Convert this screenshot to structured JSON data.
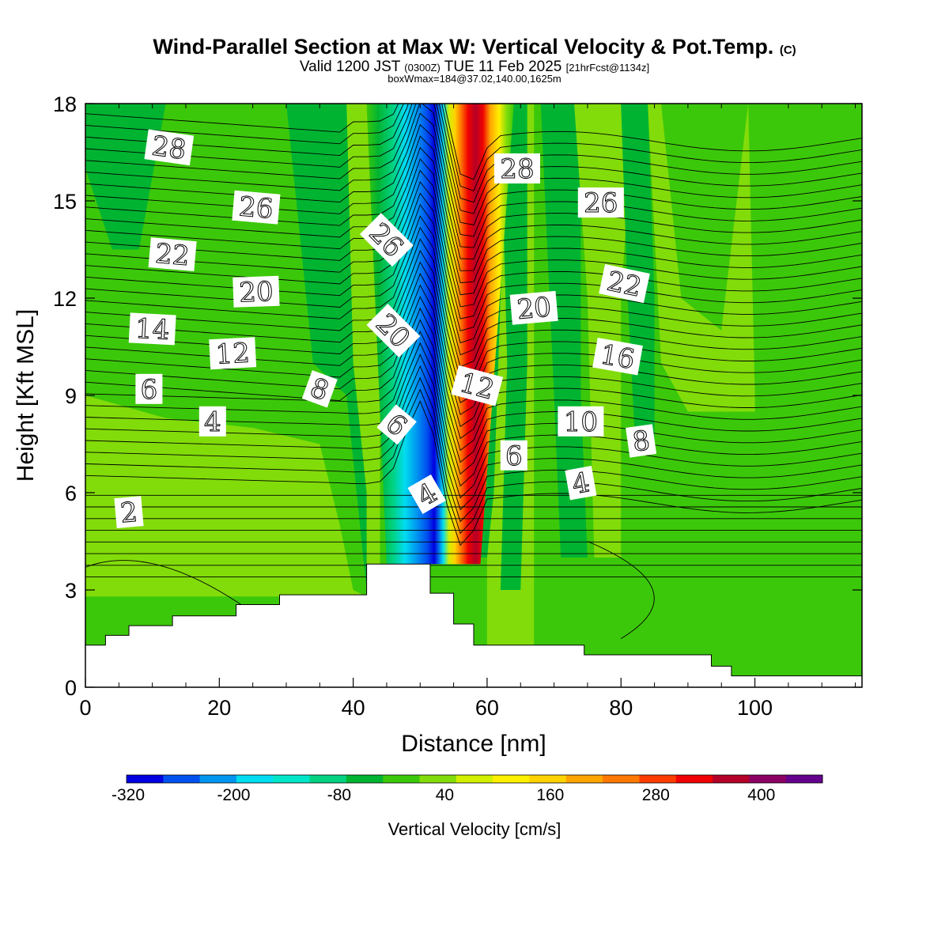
{
  "header": {
    "title_main": "Wind-Parallel Section at Max W: Vertical Velocity & Pot.Temp.",
    "title_mark": "(C)",
    "valid_a": "Valid 1200 JST",
    "valid_b": "(0300Z)",
    "valid_c": "TUE 11 Feb 2025",
    "valid_d": "[21hrFcst@1134z]",
    "box_info": "boxWmax=184@37.02,140.00,1625m"
  },
  "chart_data": {
    "type": "heatmap",
    "xlabel": "Distance [nm]",
    "ylabel": "Height [Kft MSL]",
    "xlim": [
      0,
      116
    ],
    "ylim": [
      0,
      18
    ],
    "xticks": [
      0,
      20,
      40,
      60,
      80,
      100
    ],
    "yticks": [
      0,
      3,
      6,
      9,
      12,
      15,
      18
    ],
    "colorbar": {
      "label": "Vertical Velocity [cm/s]",
      "tick_values": [
        -320,
        -200,
        -80,
        40,
        160,
        280,
        400
      ],
      "tick_labels": [
        "-320",
        "-200",
        "-80",
        "40",
        "160",
        "280",
        "400"
      ],
      "colors": [
        "#0000e0",
        "#0050f0",
        "#0096f0",
        "#00dcf0",
        "#00e6c8",
        "#00d282",
        "#00b432",
        "#3cc80a",
        "#82dc0a",
        "#d2f000",
        "#fff000",
        "#ffd200",
        "#ffa500",
        "#ff7800",
        "#ff3c00",
        "#f00000",
        "#b40028",
        "#8c0064",
        "#64008c"
      ]
    },
    "terrain": [
      [
        0,
        1.3
      ],
      [
        3,
        1.3
      ],
      [
        3,
        1.6
      ],
      [
        6.5,
        1.6
      ],
      [
        6.5,
        1.9
      ],
      [
        13,
        1.9
      ],
      [
        13,
        2.2
      ],
      [
        22.5,
        2.2
      ],
      [
        22.5,
        2.55
      ],
      [
        29,
        2.55
      ],
      [
        29,
        2.85
      ],
      [
        42,
        2.85
      ],
      [
        42,
        3.8
      ],
      [
        51.5,
        3.8
      ],
      [
        51.5,
        2.9
      ],
      [
        55,
        2.9
      ],
      [
        55,
        1.95
      ],
      [
        58,
        1.95
      ],
      [
        58,
        1.3
      ],
      [
        74.5,
        1.3
      ],
      [
        74.5,
        1.0
      ],
      [
        93.5,
        1.0
      ],
      [
        93.5,
        0.65
      ],
      [
        96.5,
        0.65
      ],
      [
        96.5,
        0.35
      ],
      [
        116,
        0.35
      ]
    ],
    "updraft_axis": [
      [
        53,
        4.5
      ],
      [
        58,
        18
      ]
    ],
    "downdraft_axis": [
      [
        51,
        5.0
      ],
      [
        48,
        18
      ]
    ],
    "theta_contour_labels": [
      {
        "text": "28",
        "x": 12.5,
        "y": 16.65,
        "rot": 8
      },
      {
        "text": "26",
        "x": 25.5,
        "y": 14.8,
        "rot": 5
      },
      {
        "text": "22",
        "x": 13,
        "y": 13.35,
        "rot": 5
      },
      {
        "text": "20",
        "x": 25.5,
        "y": 12.2,
        "rot": -2
      },
      {
        "text": "14",
        "x": 10,
        "y": 11.05,
        "rot": 3
      },
      {
        "text": "12",
        "x": 22,
        "y": 10.3,
        "rot": -3
      },
      {
        "text": "6",
        "x": 9.5,
        "y": 9.2,
        "rot": 0
      },
      {
        "text": "4",
        "x": 19,
        "y": 8.2,
        "rot": 0
      },
      {
        "text": "2",
        "x": 6.5,
        "y": 5.4,
        "rot": -5
      },
      {
        "text": "8",
        "x": 35,
        "y": 9.2,
        "rot": 20
      },
      {
        "text": "26",
        "x": 45,
        "y": 13.8,
        "rot": 45
      },
      {
        "text": "20",
        "x": 46,
        "y": 11.0,
        "rot": 45
      },
      {
        "text": "6",
        "x": 46.5,
        "y": 8.1,
        "rot": 40
      },
      {
        "text": "4",
        "x": 51,
        "y": 5.95,
        "rot": -30
      },
      {
        "text": "12",
        "x": 58.5,
        "y": 9.3,
        "rot": 15
      },
      {
        "text": "28",
        "x": 64.5,
        "y": 16.0,
        "rot": 0
      },
      {
        "text": "26",
        "x": 77,
        "y": 14.95,
        "rot": 0
      },
      {
        "text": "20",
        "x": 67,
        "y": 11.7,
        "rot": -5
      },
      {
        "text": "22",
        "x": 80.5,
        "y": 12.45,
        "rot": 12
      },
      {
        "text": "16",
        "x": 79.5,
        "y": 10.2,
        "rot": 10
      },
      {
        "text": "10",
        "x": 74,
        "y": 8.2,
        "rot": 0
      },
      {
        "text": "8",
        "x": 83,
        "y": 7.6,
        "rot": -8
      },
      {
        "text": "6",
        "x": 64,
        "y": 7.15,
        "rot": 0
      },
      {
        "text": "4",
        "x": 74,
        "y": 6.3,
        "rot": -10
      }
    ]
  }
}
